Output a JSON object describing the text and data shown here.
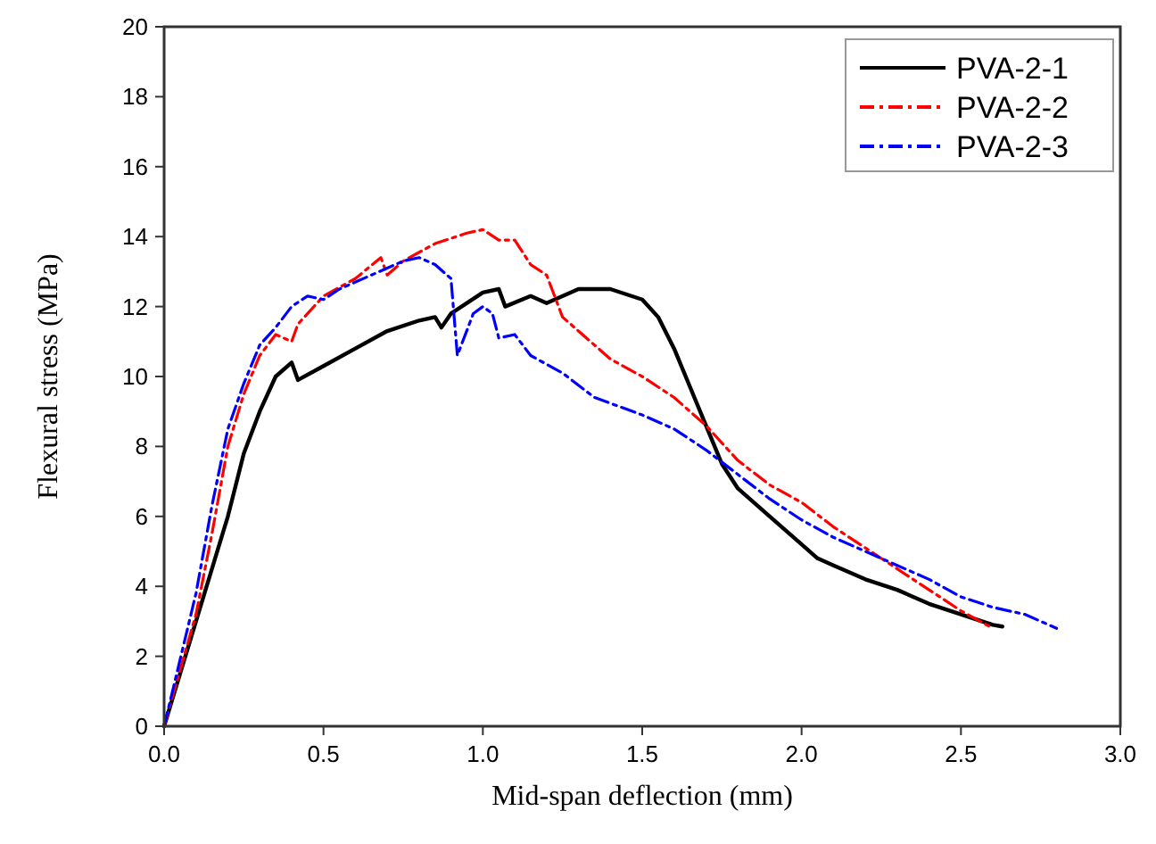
{
  "chart_data": {
    "type": "line",
    "xlabel": "Mid-span deflection (mm)",
    "ylabel": "Flexural stress (MPa)",
    "xlim": [
      0,
      3
    ],
    "ylim": [
      0,
      20
    ],
    "xticks": [
      {
        "value": 0,
        "label": "0.0"
      },
      {
        "value": 0.5,
        "label": "0.5"
      },
      {
        "value": 1,
        "label": "1.0"
      },
      {
        "value": 1.5,
        "label": "1.5"
      },
      {
        "value": 2,
        "label": "2.0"
      },
      {
        "value": 2.5,
        "label": "2.5"
      },
      {
        "value": 3,
        "label": "3.0"
      }
    ],
    "yticks": [
      0,
      2,
      4,
      6,
      8,
      10,
      12,
      14,
      16,
      18,
      20
    ],
    "grid": false,
    "legend": "top right",
    "marker": "none",
    "series": [
      {
        "name": "PVA-2-1",
        "color": "#000000",
        "line_style": "solid",
        "x": [
          0,
          0.1,
          0.2,
          0.25,
          0.3,
          0.35,
          0.4,
          0.42,
          0.5,
          0.6,
          0.7,
          0.8,
          0.85,
          0.87,
          0.9,
          1.0,
          1.05,
          1.07,
          1.15,
          1.2,
          1.3,
          1.4,
          1.5,
          1.55,
          1.6,
          1.65,
          1.7,
          1.75,
          1.8,
          1.85,
          1.9,
          2.0,
          2.05,
          2.1,
          2.2,
          2.3,
          2.4,
          2.5,
          2.6,
          2.63
        ],
        "values": [
          0,
          3,
          6,
          7.8,
          9,
          10,
          10.4,
          9.9,
          10.3,
          10.8,
          11.3,
          11.6,
          11.7,
          11.4,
          11.8,
          12.4,
          12.5,
          12.0,
          12.3,
          12.1,
          12.5,
          12.5,
          12.2,
          11.7,
          10.8,
          9.7,
          8.6,
          7.5,
          6.8,
          6.4,
          6.0,
          5.2,
          4.8,
          4.6,
          4.2,
          3.9,
          3.5,
          3.2,
          2.9,
          2.85
        ]
      },
      {
        "name": "PVA-2-2",
        "color": "#ff0000",
        "line_style": "dashed",
        "x": [
          0,
          0.1,
          0.15,
          0.2,
          0.25,
          0.3,
          0.35,
          0.4,
          0.42,
          0.5,
          0.6,
          0.68,
          0.7,
          0.75,
          0.85,
          0.95,
          1.0,
          1.05,
          1.1,
          1.15,
          1.2,
          1.25,
          1.3,
          1.4,
          1.5,
          1.6,
          1.7,
          1.8,
          1.9,
          2.0,
          2.1,
          2.2,
          2.3,
          2.4,
          2.5,
          2.6
        ],
        "values": [
          0,
          3.2,
          5.5,
          8,
          9.5,
          10.6,
          11.2,
          11.0,
          11.5,
          12.3,
          12.8,
          13.4,
          12.9,
          13.3,
          13.8,
          14.1,
          14.2,
          13.9,
          13.9,
          13.2,
          12.9,
          11.7,
          11.3,
          10.5,
          10.0,
          9.4,
          8.6,
          7.6,
          6.9,
          6.4,
          5.7,
          5.1,
          4.5,
          3.9,
          3.3,
          2.8
        ]
      },
      {
        "name": "PVA-2-3",
        "color": "#0000ff",
        "line_style": "dashed",
        "x": [
          0,
          0.1,
          0.15,
          0.2,
          0.25,
          0.3,
          0.35,
          0.4,
          0.45,
          0.5,
          0.55,
          0.65,
          0.75,
          0.8,
          0.85,
          0.9,
          0.92,
          0.97,
          1.0,
          1.03,
          1.05,
          1.1,
          1.15,
          1.25,
          1.35,
          1.5,
          1.6,
          1.7,
          1.8,
          1.9,
          2.0,
          2.1,
          2.2,
          2.3,
          2.4,
          2.5,
          2.6,
          2.7,
          2.8
        ],
        "values": [
          0,
          3.8,
          6.3,
          8.5,
          9.8,
          10.9,
          11.4,
          12.0,
          12.3,
          12.2,
          12.5,
          12.9,
          13.3,
          13.4,
          13.2,
          12.8,
          10.6,
          11.8,
          12.0,
          11.8,
          11.1,
          11.2,
          10.6,
          10.1,
          9.4,
          8.9,
          8.5,
          7.9,
          7.2,
          6.5,
          5.9,
          5.4,
          5.0,
          4.6,
          4.2,
          3.7,
          3.4,
          3.2,
          2.8
        ]
      }
    ]
  }
}
